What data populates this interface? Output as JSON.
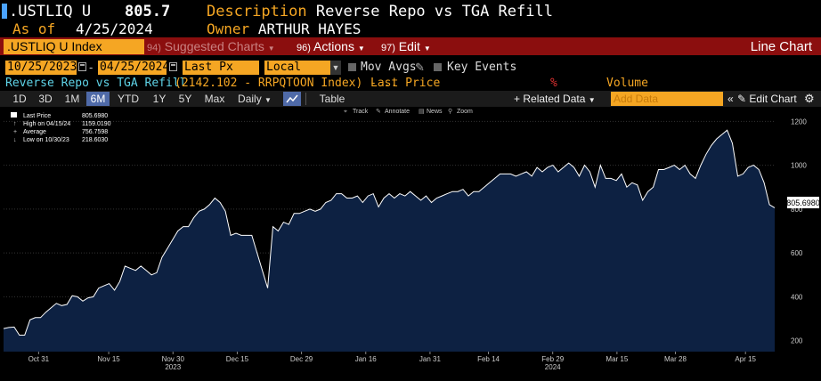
{
  "header": {
    "ticker": ".USTLIQ U",
    "price": "805.7",
    "asof_label": "As of",
    "asof_date": "4/25/2024",
    "description_label": "Description",
    "description": "Reverse Repo vs TGA Refill",
    "owner_label": "Owner",
    "owner": "ARTHUR HAYES"
  },
  "menubar": {
    "index": ".USTLIQ U Index",
    "suggested_num": "94)",
    "suggested": "Suggested Charts",
    "actions_num": "96)",
    "actions": "Actions",
    "edit_num": "97)",
    "edit": "Edit",
    "chart_type": "Line Chart"
  },
  "controls": {
    "start_date": "10/25/2023",
    "end_date": "04/25/2024",
    "field": "Last Px",
    "currency": "Local CCY",
    "mov_avgs": "Mov Avgs",
    "key_events": "Key Events"
  },
  "legend": {
    "series": "Reverse Repo vs TGA Refill",
    "source": "(2142.102 - RRPQTOON Index) - ..",
    "field": "Last Price",
    "pct": "%",
    "volume": "Volume"
  },
  "periods": [
    "1D",
    "3D",
    "1M",
    "6M",
    "YTD",
    "1Y",
    "5Y",
    "Max"
  ],
  "active_period": "6M",
  "freq": "Daily",
  "table_label": "Table",
  "related_label": "Related Data",
  "adddata_placeholder": "Add Data",
  "editchart_label": "Edit Chart",
  "tools": {
    "track": "Track",
    "annotate": "Annotate",
    "news": "News",
    "zoom": "Zoom"
  },
  "stats": {
    "last": {
      "label": "Last Price",
      "value": "805.6980"
    },
    "high": {
      "label": "High on 04/15/24",
      "value": "1159.0190"
    },
    "avg": {
      "label": "Average",
      "value": "756.7598"
    },
    "low": {
      "label": "Low on 10/30/23",
      "value": "218.6030"
    }
  },
  "colors": {
    "area_fill": "#0d2142",
    "line": "#ffffff",
    "accent": "#f5a623",
    "menubar": "#8b0e0e"
  },
  "chart_data": {
    "type": "area",
    "series_name": "Reverse Repo vs TGA Refill",
    "last_value_label": "805.6980",
    "ylim": [
      150,
      1250
    ],
    "y_ticks": [
      200,
      400,
      600,
      800,
      1000,
      1200
    ],
    "xlim": [
      0,
      132
    ],
    "x_ticks": [
      {
        "i": 6,
        "label": "Oct 31",
        "year": ""
      },
      {
        "i": 18,
        "label": "Nov 15",
        "year": ""
      },
      {
        "i": 29,
        "label": "Nov 30",
        "year": "2023"
      },
      {
        "i": 40,
        "label": "Dec 15",
        "year": ""
      },
      {
        "i": 51,
        "label": "Dec 29",
        "year": ""
      },
      {
        "i": 62,
        "label": "Jan 16",
        "year": ""
      },
      {
        "i": 73,
        "label": "Jan 31",
        "year": ""
      },
      {
        "i": 83,
        "label": "Feb 14",
        "year": ""
      },
      {
        "i": 94,
        "label": "Feb 29",
        "year": "2024"
      },
      {
        "i": 105,
        "label": "Mar 15",
        "year": ""
      },
      {
        "i": 115,
        "label": "Mar 28",
        "year": ""
      },
      {
        "i": 127,
        "label": "Apr 15",
        "year": ""
      }
    ],
    "values": [
      255,
      260,
      262,
      225,
      225,
      295,
      305,
      305,
      330,
      350,
      370,
      360,
      365,
      405,
      400,
      380,
      395,
      400,
      440,
      450,
      460,
      430,
      470,
      540,
      530,
      520,
      540,
      520,
      500,
      510,
      580,
      620,
      660,
      700,
      720,
      720,
      760,
      790,
      800,
      820,
      850,
      830,
      790,
      680,
      690,
      680,
      680,
      680,
      600,
      520,
      440,
      720,
      700,
      740,
      730,
      780,
      780,
      790,
      800,
      790,
      800,
      830,
      840,
      870,
      870,
      850,
      850,
      860,
      830,
      860,
      870,
      810,
      850,
      870,
      850,
      870,
      860,
      880,
      860,
      840,
      860,
      830,
      850,
      860,
      870,
      880,
      880,
      890,
      860,
      880,
      880,
      900,
      920,
      940,
      960,
      960,
      960,
      950,
      960,
      970,
      950,
      990,
      970,
      990,
      1000,
      970,
      990,
      1010,
      990,
      950,
      1000,
      970,
      900,
      1000,
      940,
      940,
      930,
      960,
      900,
      920,
      910,
      840,
      880,
      900,
      980,
      980,
      990,
      1000,
      980,
      1000,
      960,
      940,
      1000,
      1050,
      1090,
      1120,
      1140,
      1160,
      1100,
      950,
      960,
      990,
      1000,
      980,
      920,
      820,
      806
    ]
  }
}
